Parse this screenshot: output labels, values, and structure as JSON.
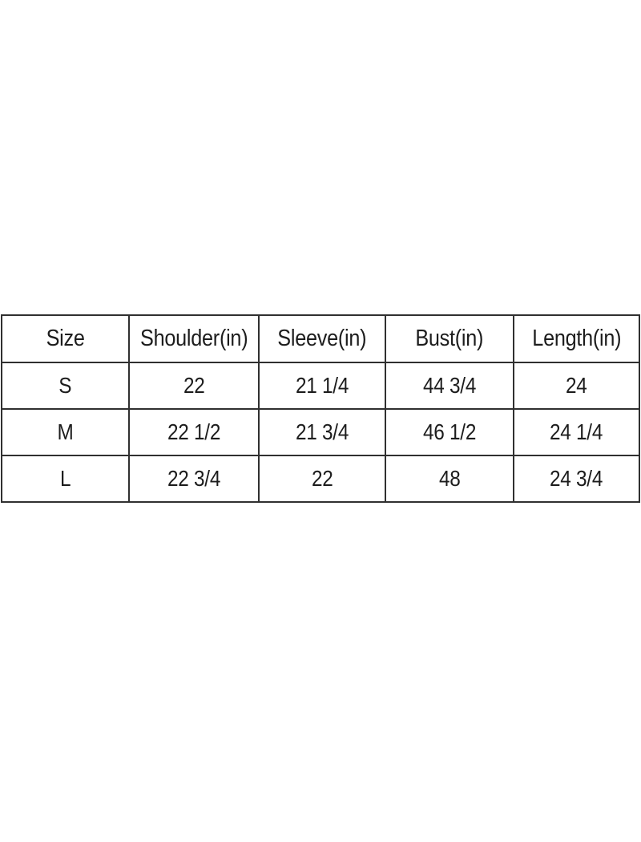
{
  "chart_data": {
    "type": "table",
    "columns": [
      "Size",
      "Shoulder(in)",
      "Sleeve(in)",
      "Bust(in)",
      "Length(in)"
    ],
    "rows": [
      [
        "S",
        "22",
        "21 1/4",
        "44 3/4",
        "24"
      ],
      [
        "M",
        "22 1/2",
        "21 3/4",
        "46 1/2",
        "24 1/4"
      ],
      [
        "L",
        "22 3/4",
        "22",
        "48",
        "24 3/4"
      ]
    ]
  },
  "colors": {
    "background": "#ffffff",
    "border": "#303030",
    "text": "#1d1d1d"
  }
}
